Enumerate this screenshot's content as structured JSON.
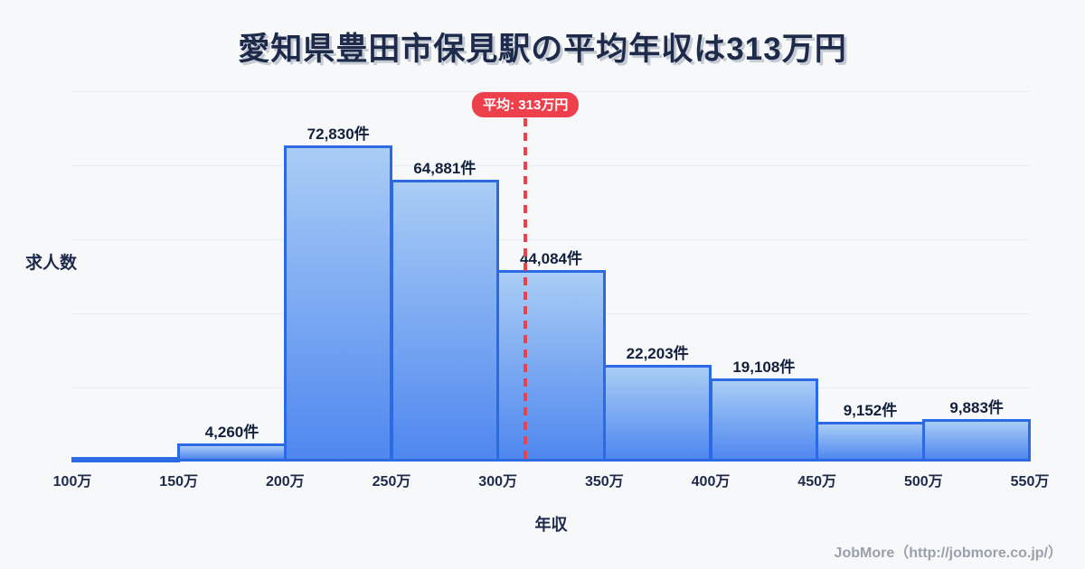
{
  "title": "愛知県豊田市保見駅の平均年収は313万円",
  "chart_data": {
    "type": "bar",
    "title": "愛知県豊田市保見駅の平均年収は313万円",
    "xlabel": "年収",
    "ylabel": "求人数",
    "x_ticks": [
      "100万",
      "150万",
      "200万",
      "250万",
      "300万",
      "350万",
      "400万",
      "450万",
      "500万",
      "550万"
    ],
    "x_range_man_yen": [
      100,
      550
    ],
    "values": [
      null,
      4260,
      72830,
      64881,
      44084,
      22203,
      19108,
      9152,
      9883
    ],
    "bar_labels": [
      "",
      "4,260件",
      "72,830件",
      "64,881件",
      "44,084件",
      "22,203件",
      "19,108件",
      "9,152件",
      "9,883件"
    ],
    "average_man_yen": 313,
    "average_badge": "平均: 313万円",
    "grid": true,
    "legend": false
  },
  "colors": {
    "background": "#f7f8fa",
    "text_navy": "#1d2a4a",
    "bar_border": "#2b6ae3",
    "bar_gradient_top": "#a9cdf5",
    "bar_gradient_bottom": "#4f87ef",
    "accent_red": "#ee3f4d",
    "gridline": "#e8ecf3",
    "footer_gray": "#9aa0ab"
  },
  "footer": {
    "credit": "JobMore（http://jobmore.co.jp/）"
  }
}
